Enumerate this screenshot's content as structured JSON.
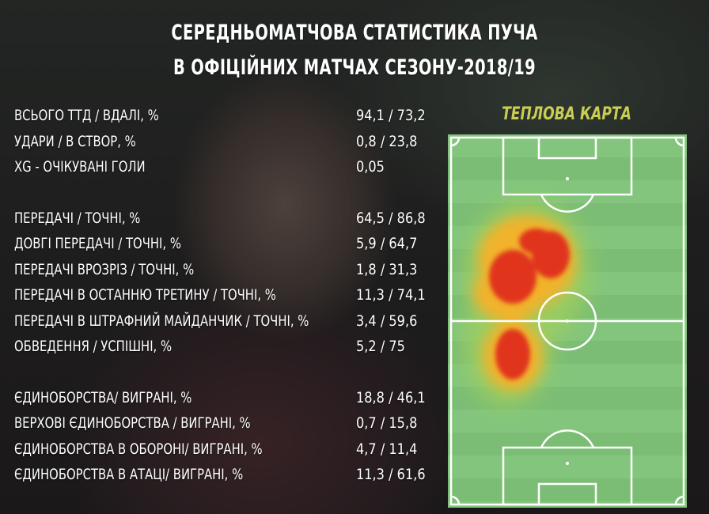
{
  "title": {
    "line1": "СЕРЕДНЬОМАТЧОВА СТАТИСТИКА ПУЧА",
    "line2": "В ОФІЦІЙНИХ МАТЧАХ СЕЗОНУ-2018/19"
  },
  "heatmap": {
    "title": "ТЕПЛОВА КАРТА"
  },
  "stats": [
    {
      "label": "ВСЬОГО ТТД / ВДАЛІ, %",
      "value": "94,1 / 73,2"
    },
    {
      "label": "УДАРИ / В СТВОР, %",
      "value": "0,8 / 23,8"
    },
    {
      "label": "XG - ОЧІКУВАНІ ГОЛИ",
      "value": "0,05"
    },
    {
      "label": "ПЕРЕДАЧІ / ТОЧНІ, %",
      "value": "64,5 / 86,8"
    },
    {
      "label": "ДОВГІ ПЕРЕДАЧІ / ТОЧНІ, %",
      "value": "5,9 / 64,7"
    },
    {
      "label": "ПЕРЕДАЧІ ВРОЗРІЗ / ТОЧНІ, %",
      "value": "1,8 / 31,3"
    },
    {
      "label": "ПЕРЕДАЧІ В ОСТАННЮ ТРЕТИНУ / ТОЧНІ, %",
      "value": "11,3 / 74,1"
    },
    {
      "label": "ПЕРЕДАЧІ В ШТРАФНИЙ МАЙДАНЧИК / ТОЧНІ, %",
      "value": "3,4 / 59,6"
    },
    {
      "label": "ОБВЕДЕННЯ / УСПІШНІ, %",
      "value": "5,2 / 75"
    },
    {
      "label": "ЄДИНОБОРСТВА/ ВИГРАНІ, %",
      "value": "18,8 / 46,1"
    },
    {
      "label": "ВЕРХОВІ ЄДИНОБОРСТВА / ВИГРАНІ, %",
      "value": "0,7 / 15,8"
    },
    {
      "label": "ЄДИНОБОРСТВА В ОБОРОНІ/ ВИГРАНІ, %",
      "value": "4,7 / 11,4"
    },
    {
      "label": "ЄДИНОБОРСТВА В АТАЦІ/ ВИГРАНІ, %",
      "value": "11,3 / 61,6"
    }
  ],
  "colors": {
    "heat_title": "#c9cd52",
    "pitch_green": "#83c57d",
    "heat_hot": "#e0361f",
    "heat_warm": "#f2b22a",
    "heat_cool": "#9fcf5e"
  }
}
